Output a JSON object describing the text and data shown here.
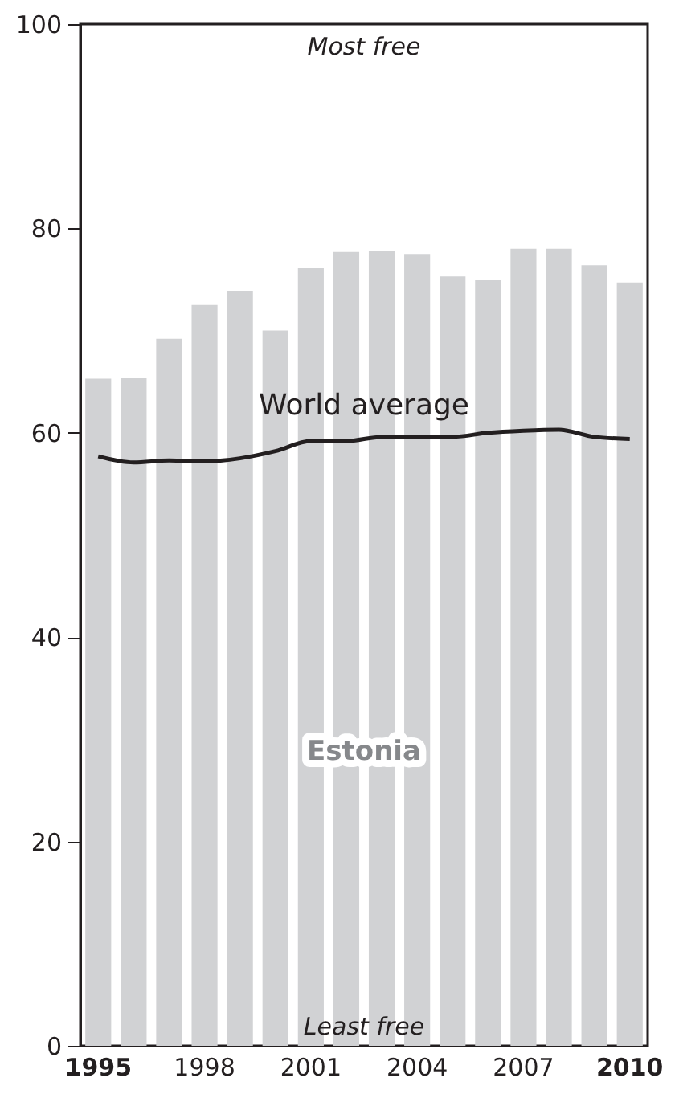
{
  "chart_data": {
    "type": "bar",
    "categories": [
      "1995",
      null,
      null,
      "1998",
      null,
      null,
      "2001",
      null,
      null,
      "2004",
      null,
      null,
      "2007",
      null,
      null,
      "2010"
    ],
    "series": [
      {
        "name": "Estonia",
        "color": "#d1d2d4",
        "values": [
          65.3,
          65.4,
          69.2,
          72.5,
          73.9,
          70.0,
          76.1,
          77.7,
          77.8,
          77.5,
          75.3,
          75.0,
          78.0,
          78.0,
          76.4,
          74.7
        ]
      },
      {
        "name": "World average",
        "type": "line",
        "color": "#231f20",
        "values": [
          57.7,
          57.1,
          57.3,
          57.2,
          57.5,
          58.2,
          59.2,
          59.2,
          59.6,
          59.6,
          59.6,
          60.0,
          60.2,
          60.3,
          59.6,
          59.4
        ]
      }
    ],
    "ylim": [
      0,
      100
    ],
    "yticks": [
      0,
      20,
      40,
      60,
      80,
      100
    ],
    "annotations": [
      "Most free",
      "Least free"
    ]
  }
}
